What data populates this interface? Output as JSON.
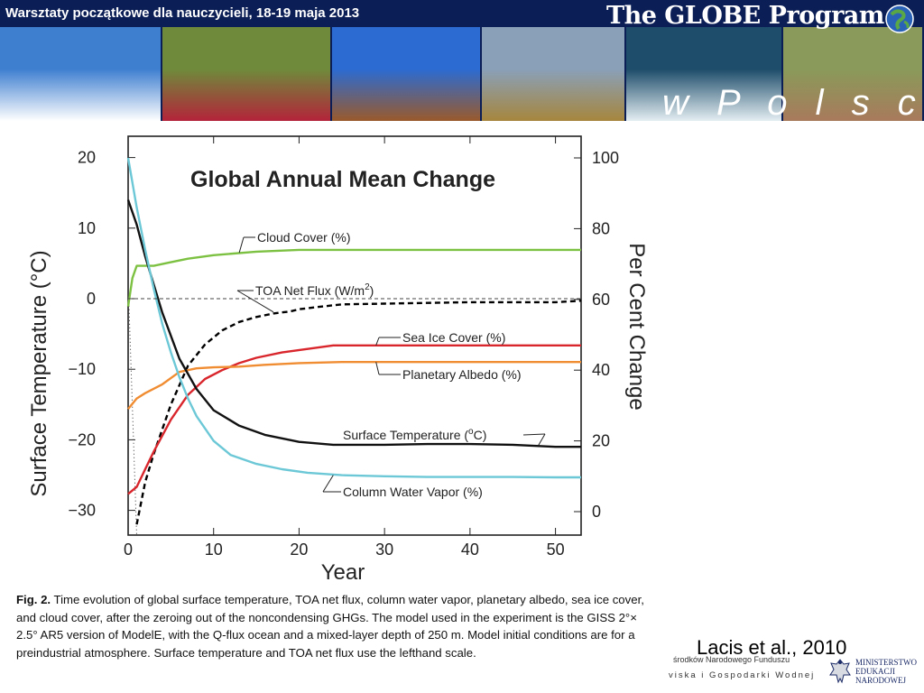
{
  "banner": {
    "title": "Warsztaty początkowe dla nauczycieli, 18-19 maja 2013",
    "program_title": "The GLOBE Program",
    "subtitle": "w P o l s c e",
    "logo_icon": "globe-logo-icon",
    "photos": [
      {
        "name": "cloud-photo",
        "colors": [
          "#3f7fd0",
          "#ffffff"
        ]
      },
      {
        "name": "hummingbird-photo",
        "colors": [
          "#6f8a3b",
          "#b3243a"
        ]
      },
      {
        "name": "desert-photo",
        "colors": [
          "#2c6bd1",
          "#9a5a2b"
        ]
      },
      {
        "name": "farmland-photo",
        "colors": [
          "#8aa0b8",
          "#a6863d"
        ]
      },
      {
        "name": "wave-photo",
        "colors": [
          "#1e4d6b",
          "#e4eef2"
        ]
      },
      {
        "name": "satellite-photo",
        "colors": [
          "#8a9a5a",
          "#a87a5c"
        ]
      }
    ]
  },
  "chart_data": {
    "type": "line",
    "title": "Global Annual Mean Change",
    "xlabel": "Year",
    "ylabel_left": "Surface Temperature (°C)",
    "ylabel_right": "Per Cent Change",
    "xlim": [
      0,
      53
    ],
    "ylim_left": [
      -32,
      20
    ],
    "ylim_right": [
      0,
      100
    ],
    "xticks": [
      0,
      10,
      20,
      30,
      40,
      50
    ],
    "yticks_left": [
      20,
      10,
      0,
      -10,
      -20,
      -30
    ],
    "yticks_right": [
      100,
      80,
      60,
      40,
      20,
      0
    ],
    "series": [
      {
        "name": "Cloud Cover (%)",
        "label": "Cloud Cover (%)",
        "axis": "right",
        "color": "#7dc142",
        "dash": "",
        "x": [
          0,
          0.5,
          1,
          1.5,
          3,
          5,
          7,
          10,
          15,
          20,
          25,
          30,
          35,
          40,
          45,
          50,
          53
        ],
        "y": [
          58,
          66,
          69.5,
          69.5,
          69.5,
          70.5,
          71.5,
          72.5,
          73.5,
          74,
          74,
          74,
          74,
          74,
          74,
          74,
          74
        ]
      },
      {
        "name": "TOA Net Flux (W/m²)",
        "label": "TOA Net Flux (W/m",
        "axis": "left",
        "color": "#000000",
        "dash": "6,4",
        "x": [
          1,
          2,
          3,
          5,
          7,
          9,
          11,
          13,
          15,
          17,
          19,
          20,
          22,
          25,
          30,
          35,
          40,
          45,
          50,
          53
        ],
        "y": [
          -32,
          -26,
          -22,
          -15,
          -9.5,
          -6.5,
          -4.5,
          -3.3,
          -2.6,
          -2.1,
          -1.8,
          -1.5,
          -1.2,
          -0.8,
          -0.7,
          -0.6,
          -0.5,
          -0.5,
          -0.5,
          -0.3
        ]
      },
      {
        "name": "Sea Ice Cover (%)",
        "label": "Sea Ice Cover (%)",
        "axis": "right",
        "color": "#d8262c",
        "dash": "",
        "x": [
          0,
          1,
          2,
          3,
          5,
          7,
          9,
          11,
          13,
          15,
          18,
          21,
          24,
          27,
          30,
          35,
          40,
          45,
          50,
          53
        ],
        "y": [
          5,
          7,
          12,
          17,
          26,
          33,
          37.5,
          40,
          42,
          43.5,
          45,
          46,
          47,
          47,
          47,
          47,
          47,
          47,
          47,
          47
        ]
      },
      {
        "name": "Planetary Albedo (%)",
        "label": "Planetary Albedo (%)",
        "axis": "right",
        "color": "#f08c32",
        "dash": "",
        "x": [
          0,
          1,
          2,
          4,
          6,
          8,
          10,
          13,
          16,
          20,
          25,
          30,
          35,
          40,
          45,
          50,
          53
        ],
        "y": [
          29,
          32,
          33.5,
          36,
          39.5,
          40.5,
          40.8,
          41,
          41.5,
          42,
          42.3,
          42.3,
          42.3,
          42.3,
          42.3,
          42.3,
          42.3
        ]
      },
      {
        "name": "Surface Temperature (°C)",
        "label": "Surface Temperature (",
        "axis": "left",
        "color": "#111111",
        "dash": "",
        "x": [
          0,
          1,
          2,
          3,
          4,
          6,
          8,
          10,
          13,
          16,
          20,
          24,
          30,
          35,
          40,
          45,
          50,
          53
        ],
        "y": [
          14,
          10.5,
          6,
          2,
          -2,
          -8.5,
          -12.8,
          -15.8,
          -18,
          -19.3,
          -20.3,
          -20.7,
          -20.7,
          -20.6,
          -20.6,
          -20.7,
          -21,
          -21
        ]
      },
      {
        "name": "Column Water Vapor (%)",
        "label": "Column Water Vapor (%)",
        "axis": "right",
        "color": "#6cc8d6",
        "dash": "",
        "x": [
          0,
          1,
          2,
          3,
          4,
          5,
          6,
          7,
          8,
          10,
          12,
          15,
          18,
          21,
          25,
          30,
          35,
          40,
          45,
          50,
          53
        ],
        "y": [
          100,
          86,
          74,
          63,
          53,
          45,
          38,
          32,
          27,
          20,
          16,
          13.5,
          12,
          11,
          10.3,
          10,
          9.8,
          9.8,
          9.8,
          9.7,
          9.7
        ]
      },
      {
        "name": "Reference zero line",
        "label": "",
        "axis": "left",
        "color": "#444444",
        "dash": "4,3",
        "x": [
          0,
          53
        ],
        "y": [
          0,
          0
        ]
      }
    ],
    "annotations": [
      {
        "text": "Cloud Cover (%)"
      },
      {
        "text": "TOA Net Flux (W/m",
        "superscript": "2",
        "suffix": ")"
      },
      {
        "text": "Sea Ice Cover (%)"
      },
      {
        "text": "Planetary Albedo (%)"
      },
      {
        "text": "Surface Temperature (",
        "superscript": "o",
        "suffix": "C)"
      },
      {
        "text": "Column Water Vapor (%)"
      }
    ],
    "grid": false
  },
  "caption": {
    "label": "Fig. 2.",
    "text": " Time evolution of global surface temperature, TOA net flux, column water vapor, planetary albedo, sea ice cover, and cloud cover, after the zeroing out of the noncondensing GHGs. The model used in the experiment is the GISS 2°× 2.5° AR5 version of ModelE, with the Q-flux ocean and a mixed-layer depth of 250 m. Model initial conditions are for a preindustrial atmosphere. Surface temperature and TOA net flux use the lefthand scale."
  },
  "citation": "Lacis et al., 2010",
  "footer": {
    "funding_top": "środków Narodowego Funduszu",
    "funding_bottom": "viska i Gospodarki Wodnej",
    "ministry_lines": [
      "MINISTERSTWO",
      "EDUKACJI",
      "NARODOWEJ"
    ],
    "ministry_icon": "eagle-emblem-icon"
  }
}
